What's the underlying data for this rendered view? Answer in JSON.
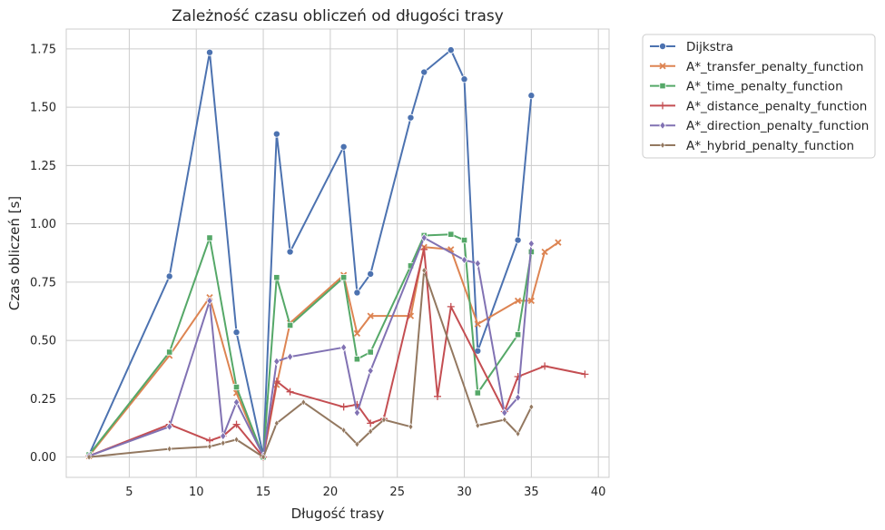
{
  "chart_data": {
    "type": "line",
    "title": "Zależność czasu obliczeń od długości trasy",
    "xlabel": "Długość trasy",
    "ylabel": "Czas obliczeń [s]",
    "xlim": [
      0.3,
      40.8
    ],
    "ylim": [
      -0.087,
      1.835
    ],
    "xticks": [
      5,
      10,
      15,
      20,
      25,
      30,
      35,
      40
    ],
    "yticks": [
      0.0,
      0.25,
      0.5,
      0.75,
      1.0,
      1.25,
      1.5,
      1.75
    ],
    "ytick_labels": [
      "0.00",
      "0.25",
      "0.50",
      "0.75",
      "1.00",
      "1.25",
      "1.50",
      "1.75"
    ],
    "grid": true,
    "legend_position": "outside-top-right",
    "series": [
      {
        "name": "Dijkstra",
        "color": "#4c72b0",
        "marker": "circle",
        "x": [
          2,
          8,
          11,
          13,
          15,
          16,
          17,
          21,
          22,
          23,
          26,
          27,
          29,
          30,
          31,
          34,
          35
        ],
        "y": [
          0.01,
          0.775,
          1.735,
          0.535,
          0.005,
          1.385,
          0.88,
          1.33,
          0.705,
          0.785,
          1.455,
          1.65,
          1.745,
          1.62,
          0.455,
          0.93,
          1.55
        ]
      },
      {
        "name": "A*_transfer_penalty_function",
        "color": "#dd8452",
        "marker": "x",
        "x": [
          2,
          8,
          11,
          13,
          15,
          16,
          17,
          21,
          22,
          23,
          26,
          27,
          29,
          31,
          34,
          35,
          36,
          37
        ],
        "y": [
          0.005,
          0.435,
          0.685,
          0.275,
          0.0,
          0.31,
          0.575,
          0.78,
          0.53,
          0.605,
          0.605,
          0.9,
          0.89,
          0.57,
          0.67,
          0.67,
          0.88,
          0.92
        ]
      },
      {
        "name": "A*_time_penalty_function",
        "color": "#55a868",
        "marker": "square",
        "x": [
          2,
          8,
          11,
          13,
          15,
          16,
          17,
          21,
          22,
          23,
          26,
          27,
          29,
          30,
          31,
          34,
          35
        ],
        "y": [
          0.01,
          0.45,
          0.94,
          0.3,
          0.0,
          0.77,
          0.565,
          0.77,
          0.42,
          0.45,
          0.82,
          0.95,
          0.955,
          0.93,
          0.275,
          0.525,
          0.88
        ]
      },
      {
        "name": "A*_distance_penalty_function",
        "color": "#c44e52",
        "marker": "plus",
        "x": [
          2,
          8,
          11,
          12,
          13,
          15,
          16,
          17,
          21,
          22,
          23,
          24,
          27,
          28,
          29,
          33,
          34,
          36,
          39
        ],
        "y": [
          0.005,
          0.14,
          0.07,
          0.09,
          0.14,
          0.0,
          0.325,
          0.28,
          0.215,
          0.225,
          0.145,
          0.165,
          0.89,
          0.26,
          0.645,
          0.195,
          0.345,
          0.39,
          0.355
        ]
      },
      {
        "name": "A*_direction_penalty_function",
        "color": "#8172b3",
        "marker": "diamond",
        "x": [
          2,
          8,
          11,
          12,
          13,
          15,
          16,
          17,
          21,
          22,
          23,
          27,
          30,
          31,
          33,
          34,
          35
        ],
        "y": [
          0.005,
          0.13,
          0.67,
          0.09,
          0.235,
          0.005,
          0.41,
          0.43,
          0.47,
          0.19,
          0.37,
          0.94,
          0.845,
          0.83,
          0.19,
          0.255,
          0.915
        ]
      },
      {
        "name": "A*_hybrid_penalty_function",
        "color": "#937860",
        "marker": "diamond-small",
        "x": [
          2,
          8,
          11,
          12,
          13,
          15,
          16,
          18,
          21,
          22,
          23,
          24,
          26,
          27,
          31,
          33,
          34,
          35
        ],
        "y": [
          0.0,
          0.035,
          0.045,
          0.06,
          0.075,
          0.0,
          0.145,
          0.235,
          0.115,
          0.055,
          0.11,
          0.16,
          0.13,
          0.8,
          0.135,
          0.16,
          0.1,
          0.215
        ]
      }
    ]
  }
}
